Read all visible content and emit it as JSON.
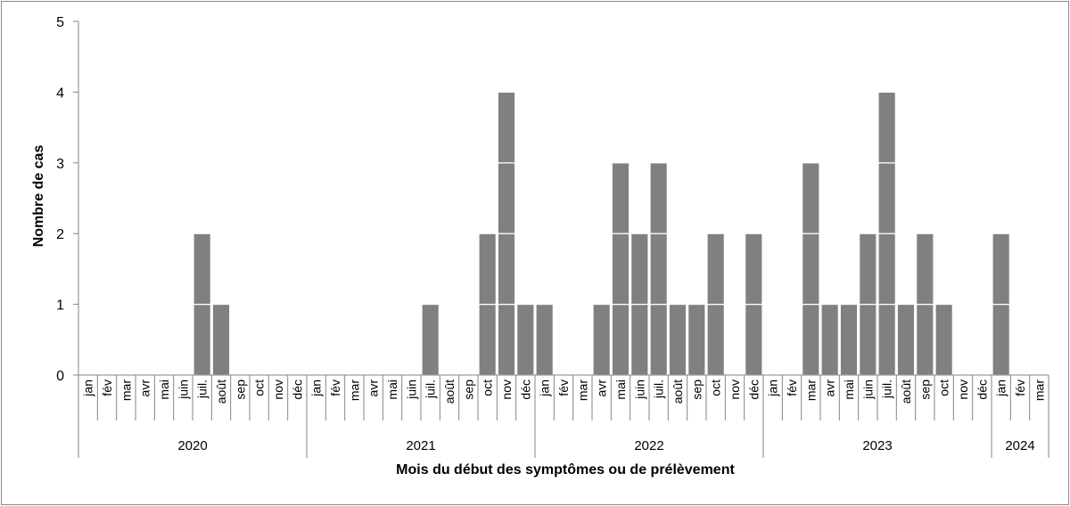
{
  "chart_data": {
    "type": "bar",
    "stacked_unit_blocks": true,
    "xlabel": "Mois du début des symptômes ou de prélèvement",
    "ylabel": "Nombre de cas",
    "ylim": [
      0,
      5
    ],
    "yticks": [
      0,
      1,
      2,
      3,
      4,
      5
    ],
    "grid": false,
    "bar_color": "#808080",
    "block_separator_color": "#ffffff",
    "years": [
      {
        "label": "2020",
        "months": [
          "jan",
          "fév",
          "mar",
          "avr",
          "mai",
          "juin",
          "juil.",
          "août",
          "sep",
          "oct",
          "nov",
          "déc"
        ],
        "values": [
          0,
          0,
          0,
          0,
          0,
          0,
          2,
          1,
          0,
          0,
          0,
          0
        ]
      },
      {
        "label": "2021",
        "months": [
          "jan",
          "fév",
          "mar",
          "avr",
          "mai",
          "juin",
          "juil.",
          "août",
          "sep",
          "oct",
          "nov",
          "déc"
        ],
        "values": [
          0,
          0,
          0,
          0,
          0,
          0,
          1,
          0,
          0,
          2,
          4,
          1
        ]
      },
      {
        "label": "2022",
        "months": [
          "jan",
          "fév",
          "mar",
          "avr",
          "mai",
          "juin",
          "juil.",
          "août",
          "sep",
          "oct",
          "nov",
          "déc"
        ],
        "values": [
          1,
          0,
          0,
          1,
          3,
          2,
          3,
          1,
          1,
          2,
          0,
          2
        ]
      },
      {
        "label": "2023",
        "months": [
          "jan",
          "fév",
          "mar",
          "avr",
          "mai",
          "juin",
          "juil.",
          "août",
          "sep",
          "oct",
          "nov",
          "déc"
        ],
        "values": [
          0,
          0,
          3,
          1,
          1,
          2,
          4,
          1,
          2,
          1,
          0,
          0
        ]
      },
      {
        "label": "2024",
        "months": [
          "jan",
          "fév",
          "mar"
        ],
        "values": [
          2,
          0,
          0
        ]
      }
    ]
  }
}
